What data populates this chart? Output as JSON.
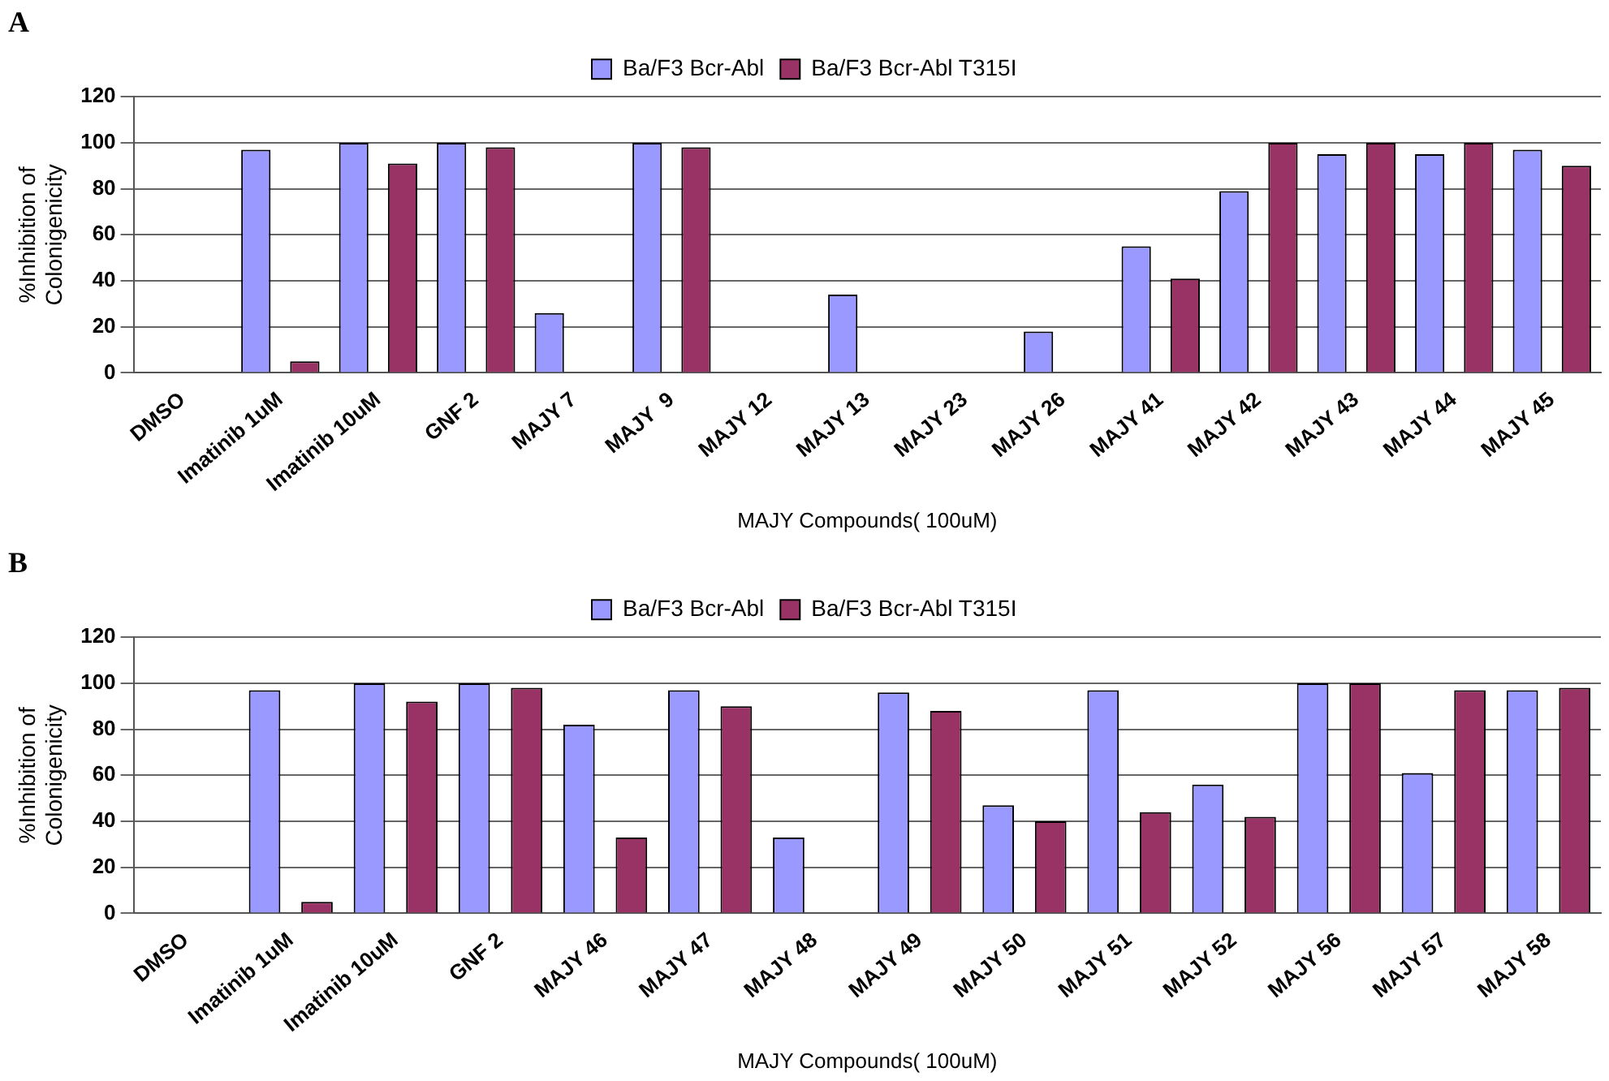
{
  "chart_data": [
    {
      "type": "bar",
      "title": "A",
      "xlabel": "MAJY Compounds( 100uM)",
      "ylabel": "%Inhibition of\nColonigenicity",
      "categories": [
        "DMSO",
        "Imatinib 1uM",
        "Imatinib 10uM",
        "GNF 2",
        "MAJY 7",
        "MAJY  9",
        "MAJY 12",
        "MAJY 13",
        "MAJY 23",
        "MAJY 26",
        "MAJY 41",
        "MAJY 42",
        "MAJY 43",
        "MAJY 44",
        "MAJY 45"
      ],
      "series": [
        {
          "name": "Ba/F3 Bcr-Abl",
          "color": "#9999ff",
          "values": [
            0,
            97,
            100,
            100,
            26,
            100,
            0,
            34,
            0,
            18,
            55,
            79,
            95,
            95,
            97
          ]
        },
        {
          "name": "Ba/F3 Bcr-Abl T315I",
          "color": "#993366",
          "values": [
            0,
            5,
            91,
            98,
            0,
            98,
            0,
            0,
            0,
            0,
            41,
            100,
            100,
            100,
            90
          ]
        }
      ],
      "ylim": [
        0,
        120
      ],
      "yticks": [
        0,
        20,
        40,
        60,
        80,
        100,
        120
      ],
      "grid": "y",
      "legend": "top"
    },
    {
      "type": "bar",
      "title": "B",
      "xlabel": "MAJY Compounds( 100uM)",
      "ylabel": "%Inhibition of\nColonigenicity",
      "categories": [
        "DMSO",
        "Imatinib 1uM",
        "Imatinib 10uM",
        "GNF 2",
        "MAJY 46",
        "MAJY 47",
        "MAJY 48",
        "MAJY 49",
        "MAJY 50",
        "MAJY 51",
        "MAJY 52",
        "MAJY 56",
        "MAJY 57",
        "MAJY 58"
      ],
      "series": [
        {
          "name": "Ba/F3 Bcr-Abl",
          "color": "#9999ff",
          "values": [
            0,
            97,
            100,
            100,
            82,
            97,
            33,
            96,
            47,
            97,
            56,
            100,
            61,
            97
          ]
        },
        {
          "name": "Ba/F3 Bcr-Abl T315I",
          "color": "#993366",
          "values": [
            0,
            5,
            92,
            98,
            33,
            90,
            0,
            88,
            40,
            44,
            42,
            100,
            97,
            98
          ]
        }
      ],
      "ylim": [
        0,
        120
      ],
      "yticks": [
        0,
        20,
        40,
        60,
        80,
        100,
        120
      ],
      "grid": "y",
      "legend": "top"
    }
  ]
}
